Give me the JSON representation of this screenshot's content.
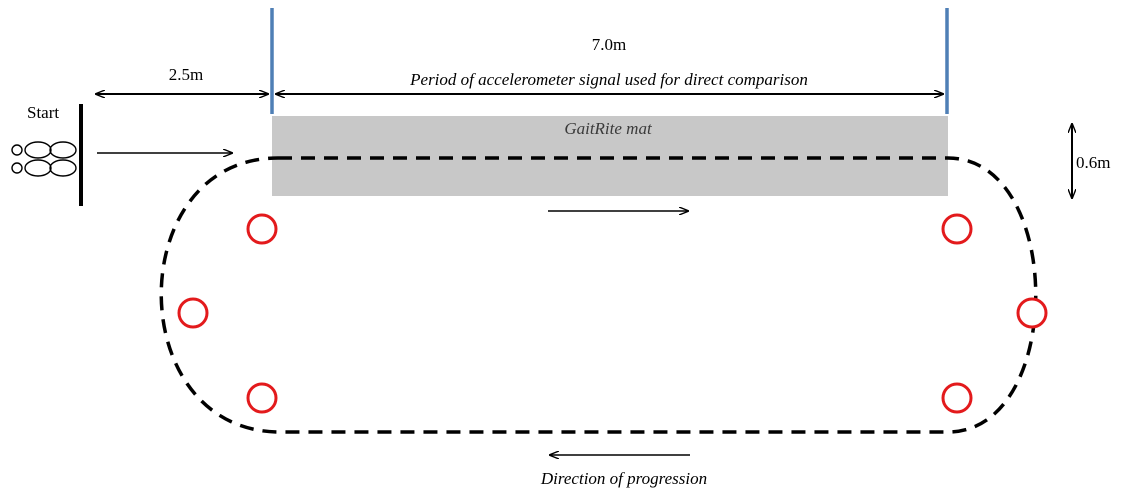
{
  "labels": {
    "start": "Start",
    "distance_start": "2.5m",
    "distance_mat": "7.0m",
    "comparison_period": "Period of accelerometer signal used for direct comparison",
    "mat": "GaitRite mat",
    "mat_width": "0.6m",
    "direction": "Direction of progression"
  },
  "colors": {
    "boundary_lines": "#4f7fb5",
    "mat_fill": "#c8c8c8",
    "cones": "#e31a1c",
    "path": "#000000"
  },
  "icons": {
    "feet": "footprints-icon",
    "cone": "cone-marker"
  }
}
